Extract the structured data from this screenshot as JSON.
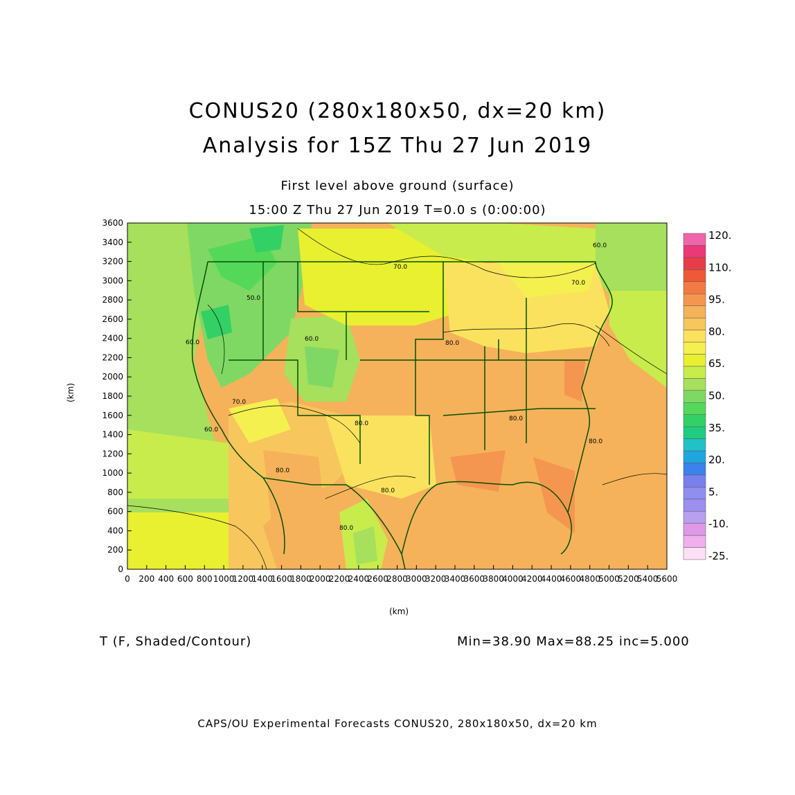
{
  "title_line1": "CONUS20 (280x180x50, dx=20 km)",
  "title_line2": "Analysis for 15Z Thu 27 Jun 2019",
  "subtitle_line1": "First level above ground (surface)",
  "subtitle_line2": "15:00 Z Thu 27 Jun 2019    T=0.0 s (0:00:00)",
  "axes": {
    "xlabel": "(km)",
    "ylabel": "(km)",
    "xlim": [
      0,
      5600
    ],
    "ylim": [
      0,
      3600
    ],
    "x_ticks": [
      "0",
      "200",
      "400",
      "600",
      "800",
      "1000",
      "1200",
      "1400",
      "1600",
      "1800",
      "2000",
      "2200",
      "2400",
      "2600",
      "2800",
      "3000",
      "3200",
      "3400",
      "3600",
      "3800",
      "4000",
      "4200",
      "4400",
      "4600",
      "4800",
      "5000",
      "5200",
      "5400",
      "5600"
    ],
    "y_ticks": [
      "0",
      "200",
      "400",
      "600",
      "800",
      "1000",
      "1200",
      "1400",
      "1600",
      "1800",
      "2000",
      "2200",
      "2400",
      "2600",
      "2800",
      "3000",
      "3200",
      "3400",
      "3600"
    ]
  },
  "contour_labels": [
    "70.0",
    "60.0",
    "50.0",
    "60.0",
    "70.0",
    "60.0",
    "80.0",
    "80.0",
    "80.0",
    "80.0",
    "80.0",
    "70.0",
    "60.0",
    "80.0",
    "80.0"
  ],
  "colorbar": {
    "labels": [
      "120.",
      "110.",
      "95.",
      "80.",
      "65.",
      "50.",
      "35.",
      "20.",
      "5.",
      "-10.",
      "-25."
    ],
    "colors": [
      "#fde0f5",
      "#f0b0ee",
      "#dd99e6",
      "#b8a0f0",
      "#9c8ff0",
      "#8f8ff0",
      "#7a80ea",
      "#3c82ec",
      "#1fa6e0",
      "#20c2c8",
      "#1fcc80",
      "#33d066",
      "#55d85a",
      "#80d864",
      "#a6e05c",
      "#c8ec4c",
      "#e8f030",
      "#f4f050",
      "#fbe25e",
      "#f7c65c",
      "#f5b25a",
      "#f59650",
      "#f47a44",
      "#ef5838",
      "#e83c4a",
      "#ec3878",
      "#f065aa"
    ]
  },
  "variable_label": "T (F, Shaded/Contour)",
  "stats": "Min=38.90 Max=88.25 inc=5.000",
  "footer": "CAPS/OU Experimental Forecasts  CONUS20, 280x180x50, dx=20 km"
}
